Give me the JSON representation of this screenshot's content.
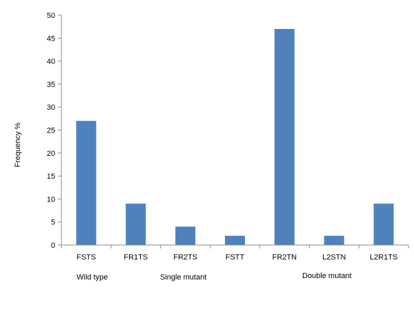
{
  "chart_data": {
    "type": "bar",
    "ylabel": "Frequency %",
    "categories": [
      "FSTS",
      "FR1TS",
      "FR2TS",
      "FSTT",
      "FR2TN",
      "L2STN",
      "L2R1TS"
    ],
    "values": [
      27,
      9,
      4,
      2,
      47,
      2,
      9
    ],
    "ylim": [
      0,
      50
    ],
    "yticks": [
      0,
      5,
      10,
      15,
      20,
      25,
      30,
      35,
      40,
      45,
      50
    ],
    "group_labels": [
      "Wild type",
      "Single mutant",
      "Double mutant"
    ],
    "bar_color": "#4f81bd",
    "grid": false,
    "legend": "none"
  }
}
